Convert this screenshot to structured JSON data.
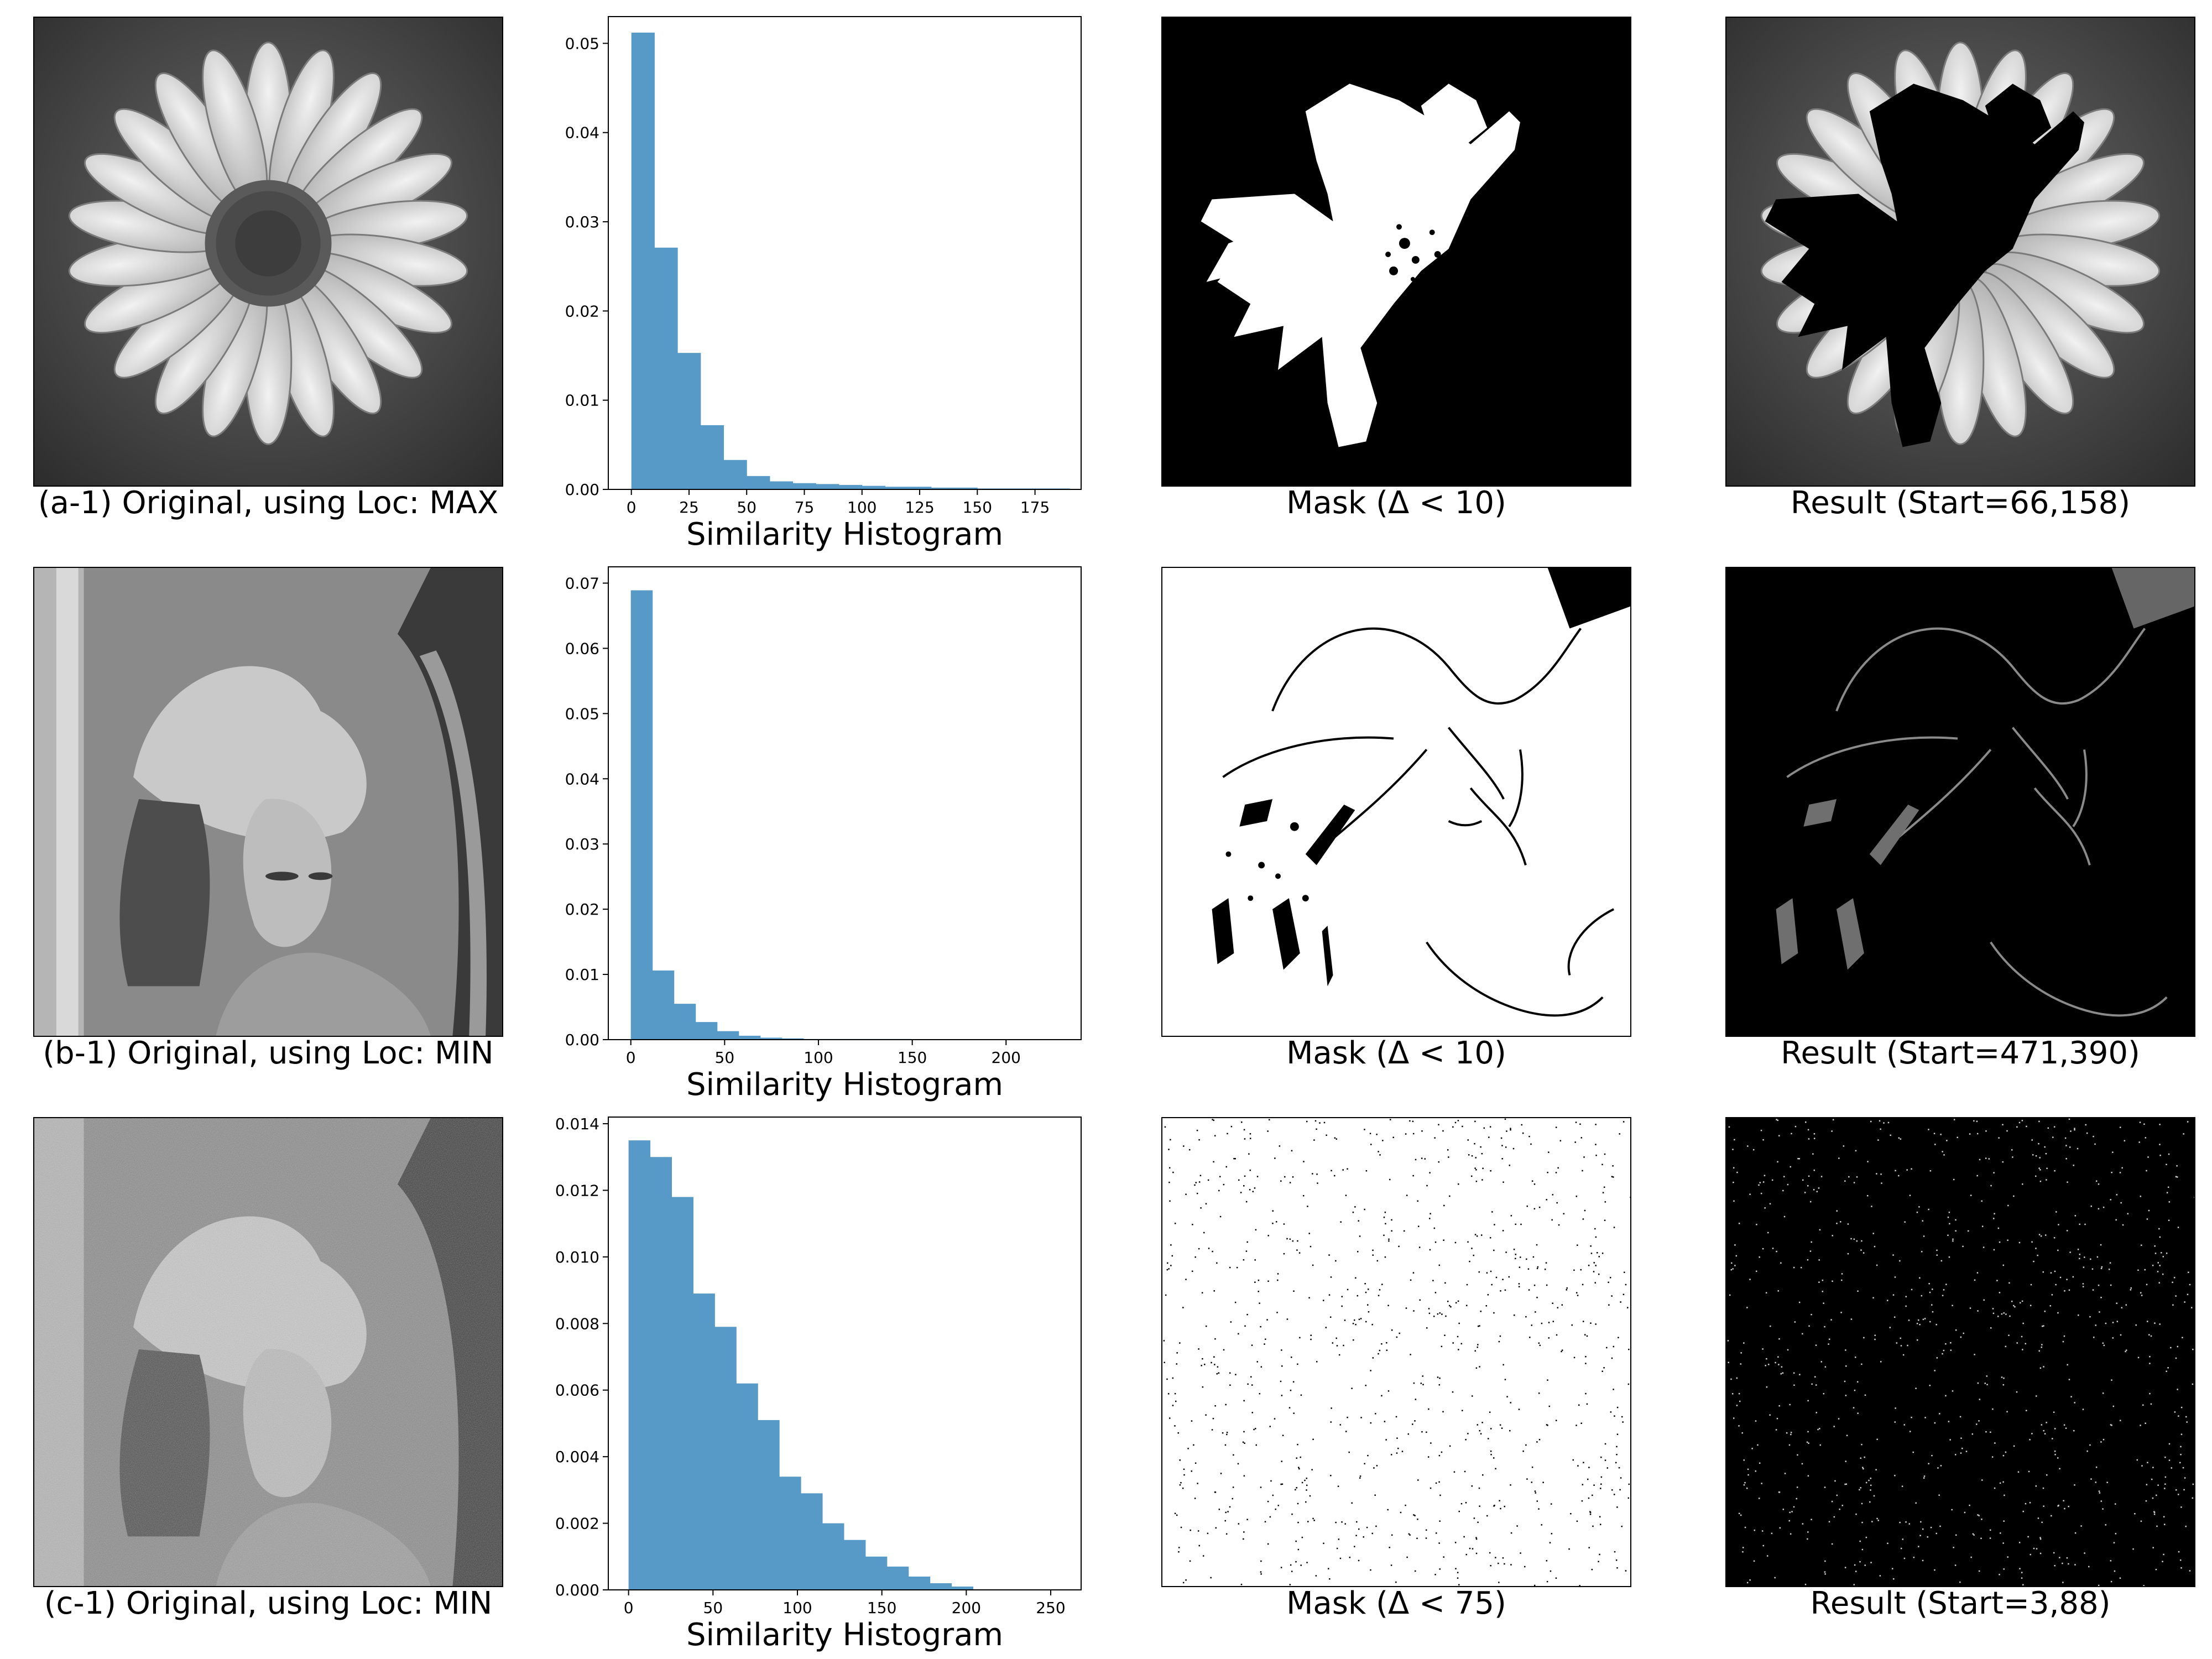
{
  "figure": {
    "rows": [
      {
        "original_caption": "(a-1) Original, using Loc: MAX",
        "image_subject": "flower",
        "mask_caption": "Mask (Δ < 10)",
        "result_caption": "Result (Start=66,158)"
      },
      {
        "original_caption": "(b-1) Original, using Loc: MIN",
        "image_subject": "portrait",
        "mask_caption": "Mask (Δ < 10)",
        "result_caption": "Result (Start=471,390)"
      },
      {
        "original_caption": "(c-1) Original, using Loc: MIN",
        "image_subject": "noisy portrait",
        "mask_caption": "Mask (Δ < 75)",
        "result_caption": "Result (Start=3,88)"
      }
    ],
    "colors": {
      "bar": "#5799c7",
      "mask_on": "#ffffff",
      "mask_off": "#000000"
    }
  },
  "chart_data": [
    {
      "type": "bar",
      "xlabel": "Similarity Histogram",
      "ylabel": "",
      "bin_width": 10,
      "bin_starts": [
        0,
        10,
        20,
        30,
        40,
        50,
        60,
        70,
        80,
        90,
        100,
        110,
        120,
        130,
        140,
        150,
        160,
        170,
        180
      ],
      "values": [
        0.0512,
        0.0271,
        0.0153,
        0.0072,
        0.0033,
        0.0015,
        0.0009,
        0.0007,
        0.0006,
        0.0005,
        0.0004,
        0.0003,
        0.0003,
        0.0002,
        0.0002,
        0.0001,
        0.0001,
        0.0001,
        0.0001
      ],
      "xlim": [
        -10,
        195
      ],
      "ylim": [
        0,
        0.053
      ],
      "xticks": [
        0,
        25,
        50,
        75,
        100,
        125,
        150,
        175
      ],
      "yticks": [
        0.0,
        0.01,
        0.02,
        0.03,
        0.04,
        0.05
      ],
      "ytick_labels": [
        "0.00",
        "0.01",
        "0.02",
        "0.03",
        "0.04",
        "0.05"
      ]
    },
    {
      "type": "bar",
      "xlabel": "Similarity Histogram",
      "ylabel": "",
      "bin_width": 11.5,
      "bin_starts": [
        0,
        11.5,
        23,
        34.5,
        46,
        57.5,
        69,
        80.5,
        92,
        103.5,
        115,
        126.5,
        138,
        149.5,
        161,
        172.5,
        184,
        195.5,
        207
      ],
      "values": [
        0.0689,
        0.0106,
        0.0055,
        0.0027,
        0.0013,
        0.0006,
        0.0003,
        0.0002,
        0.0001,
        0.0001,
        0.0001,
        0.0001,
        0.0001,
        5e-05,
        5e-05,
        5e-05,
        3e-05,
        3e-05,
        2e-05
      ],
      "xlim": [
        -12,
        240
      ],
      "ylim": [
        0,
        0.0725
      ],
      "xticks": [
        0,
        50,
        100,
        150,
        200
      ],
      "yticks": [
        0.0,
        0.01,
        0.02,
        0.03,
        0.04,
        0.05,
        0.06,
        0.07
      ],
      "ytick_labels": [
        "0.00",
        "0.01",
        "0.02",
        "0.03",
        "0.04",
        "0.05",
        "0.06",
        "0.07"
      ]
    },
    {
      "type": "bar",
      "xlabel": "Similarity Histogram",
      "ylabel": "",
      "bin_width": 12.75,
      "bin_starts": [
        0,
        12.75,
        25.5,
        38.25,
        51,
        63.75,
        76.5,
        89.25,
        102,
        114.75,
        127.5,
        140.25,
        153,
        165.75,
        178.5,
        191.25,
        204,
        216.75,
        229.5,
        242.25
      ],
      "values": [
        0.0135,
        0.013,
        0.0118,
        0.0089,
        0.0079,
        0.0062,
        0.0051,
        0.0034,
        0.0029,
        0.002,
        0.0015,
        0.001,
        0.0007,
        0.0004,
        0.0002,
        0.0001,
        0.0,
        0.0,
        0.0,
        0.0
      ],
      "xlim": [
        -12,
        268
      ],
      "ylim": [
        0,
        0.0142
      ],
      "xticks": [
        0,
        50,
        100,
        150,
        200,
        250
      ],
      "yticks": [
        0.0,
        0.002,
        0.004,
        0.006,
        0.008,
        0.01,
        0.012,
        0.014
      ],
      "ytick_labels": [
        "0.000",
        "0.002",
        "0.004",
        "0.006",
        "0.008",
        "0.010",
        "0.012",
        "0.014"
      ]
    }
  ]
}
